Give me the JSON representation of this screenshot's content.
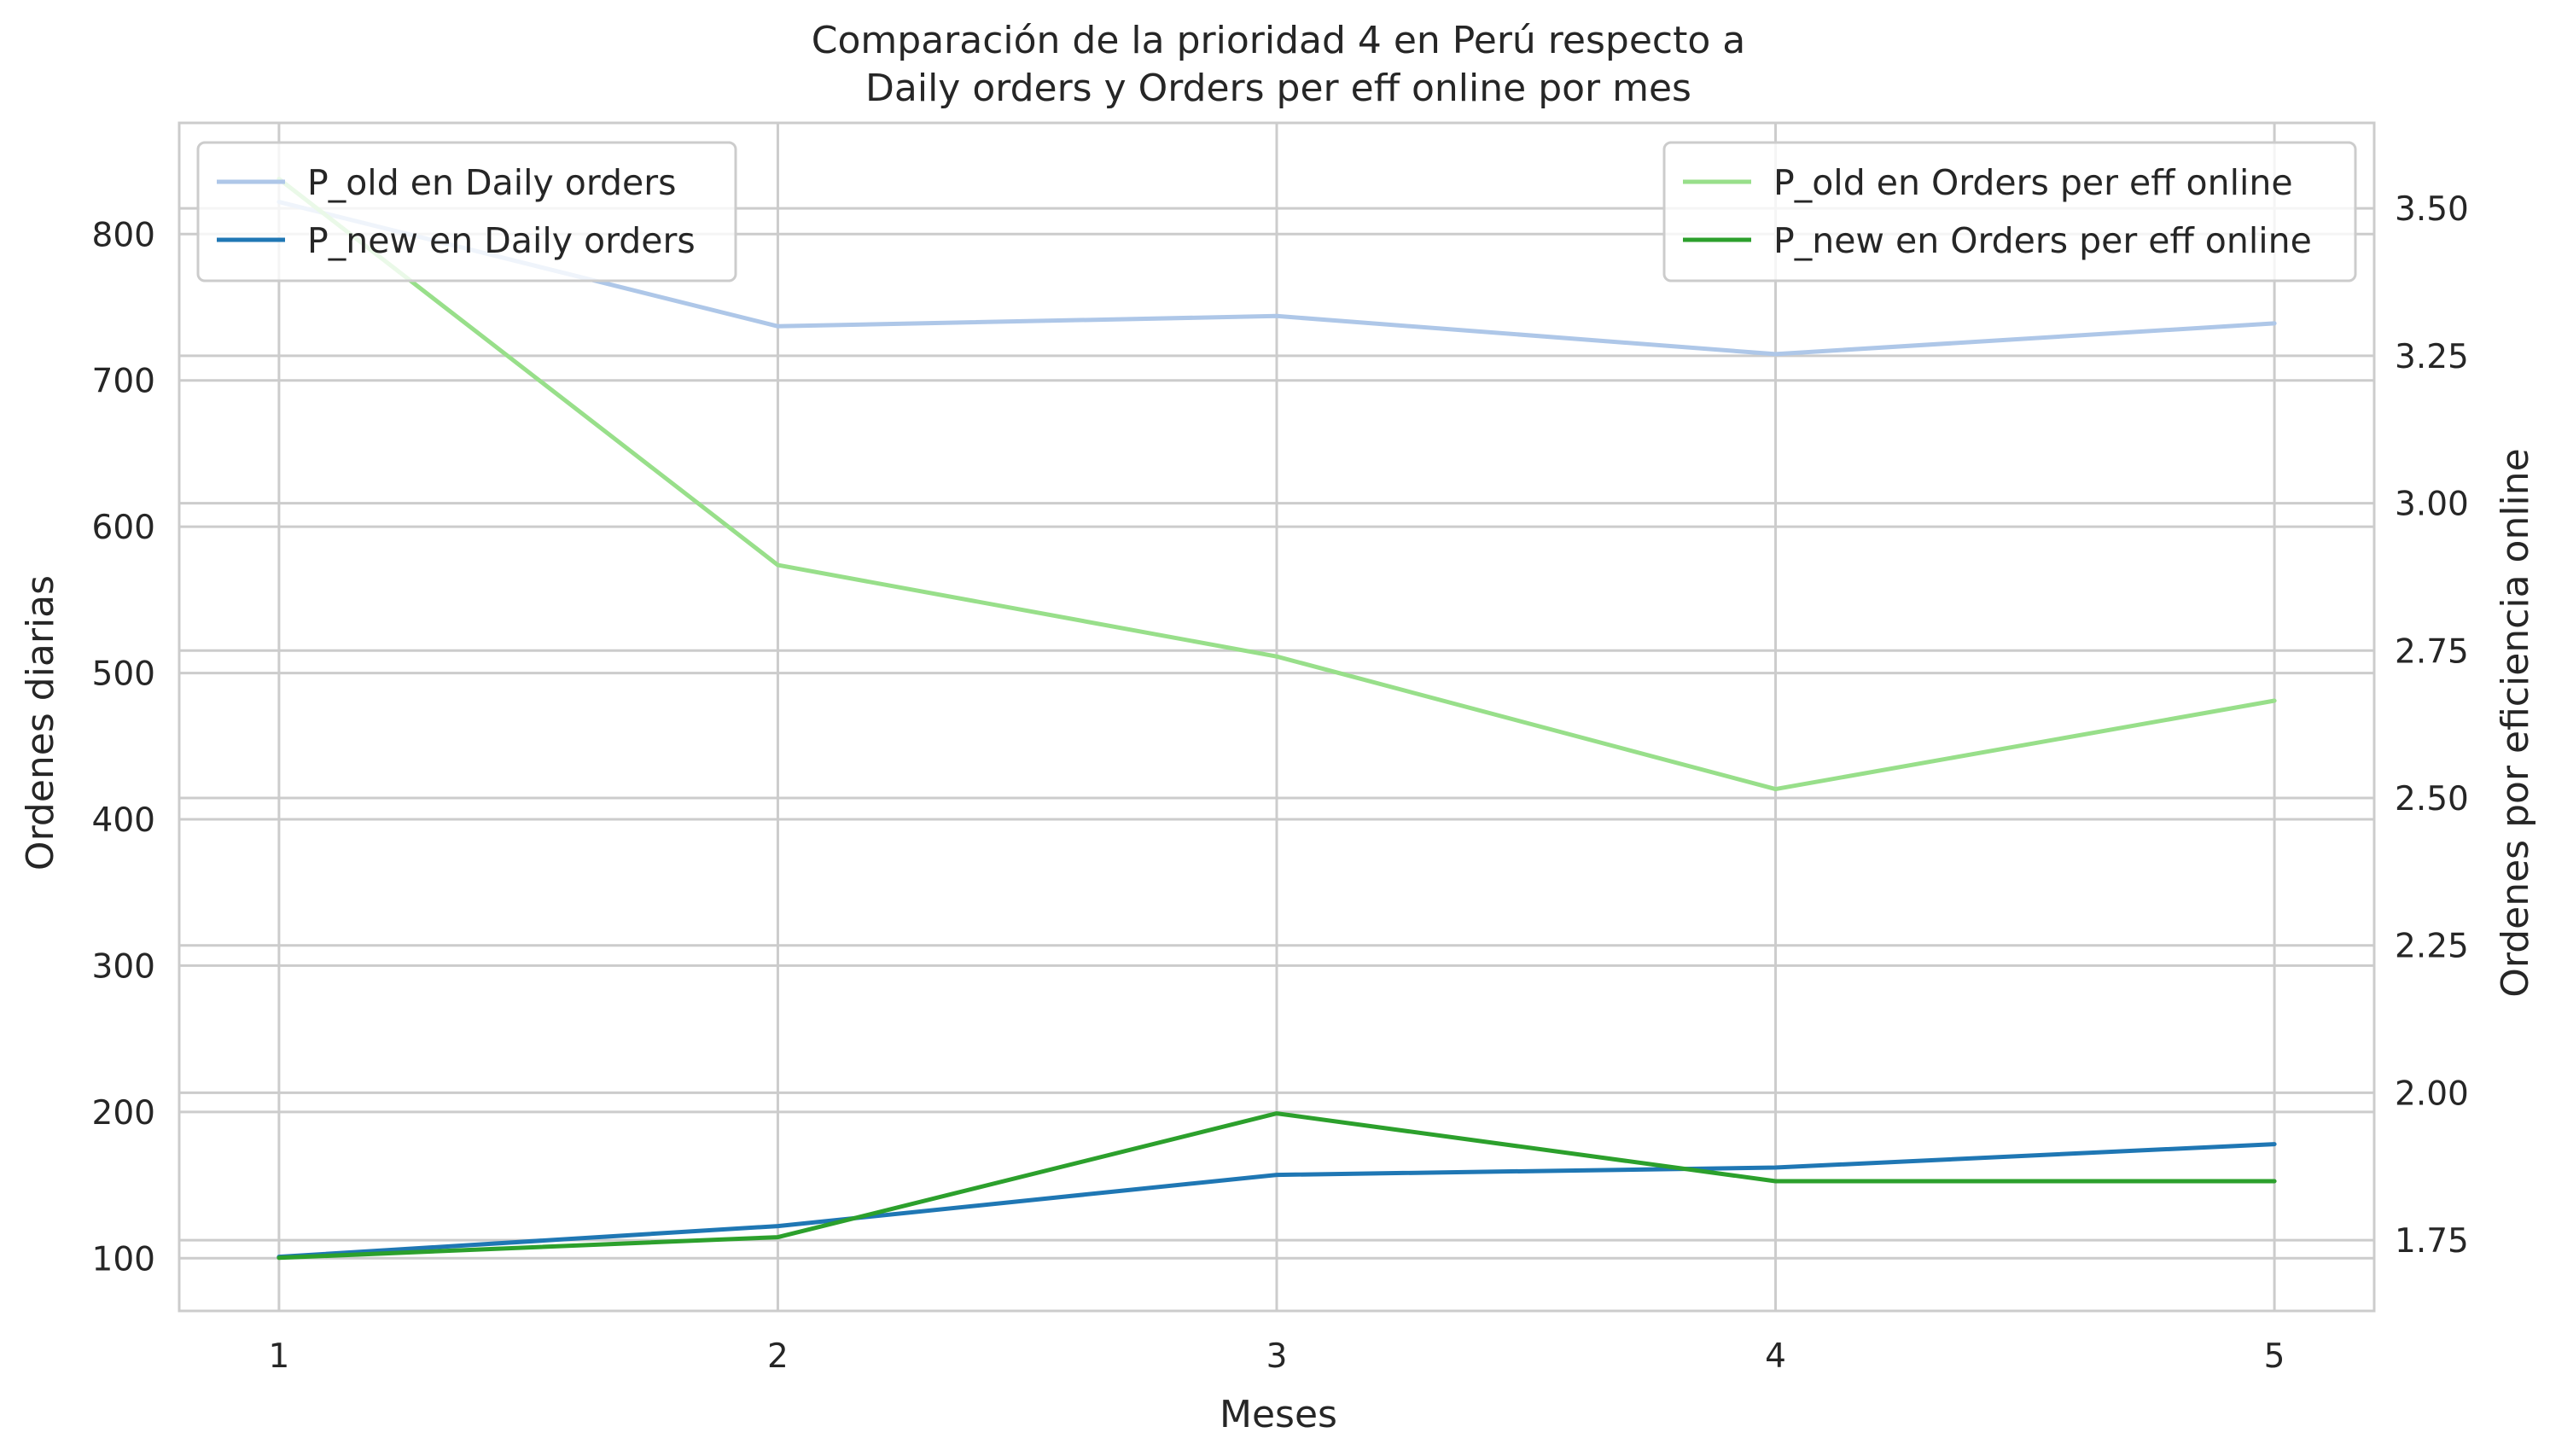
{
  "chart_data": {
    "type": "line",
    "title_line1": "Comparación de la prioridad 4 en Perú respecto a",
    "title_line2": "Daily orders y Orders per eff online por mes",
    "xlabel": "Meses",
    "ylabel_left": "Ordenes diarias",
    "ylabel_right": "Ordenes por eficiencia online",
    "x": [
      1,
      2,
      3,
      4,
      5
    ],
    "xlim": [
      0.8,
      5.2
    ],
    "ylim_left": [
      64,
      876
    ],
    "ylim_right": [
      1.63,
      3.645
    ],
    "yticks_left": [
      100,
      200,
      300,
      400,
      500,
      600,
      700,
      800
    ],
    "yticks_right": [
      "1.75",
      "2.00",
      "2.25",
      "2.50",
      "2.75",
      "3.00",
      "3.25",
      "3.50"
    ],
    "grid": true,
    "series_left": [
      {
        "name": "P_old en Daily orders",
        "color": "#aec7e8",
        "values": [
          822,
          737,
          744,
          718,
          739
        ]
      },
      {
        "name": "P_new en Daily orders",
        "color": "#1f77b4",
        "values": [
          101,
          122,
          157,
          162,
          178
        ]
      }
    ],
    "series_right": [
      {
        "name": "P_old en Orders per eff online",
        "color": "#98df8a",
        "values": [
          3.55,
          2.895,
          2.74,
          2.515,
          2.665
        ]
      },
      {
        "name": "P_new en Orders per eff online",
        "color": "#2ca02c",
        "values": [
          1.72,
          1.755,
          1.965,
          1.85,
          1.85
        ]
      }
    ],
    "legend_left_placement": "top-left",
    "legend_right_placement": "top-right"
  }
}
